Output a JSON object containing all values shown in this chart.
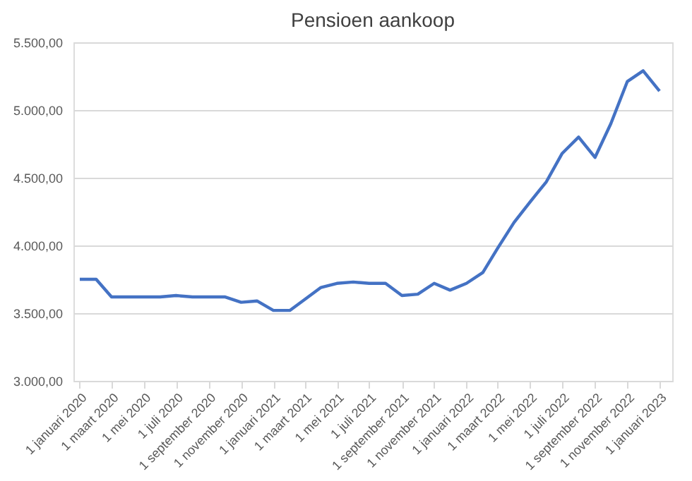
{
  "chart_data": {
    "type": "line",
    "title": "Pensioen aankoop",
    "x": [
      "2020-01-01",
      "2020-02-01",
      "2020-03-01",
      "2020-04-01",
      "2020-05-01",
      "2020-06-01",
      "2020-07-01",
      "2020-08-01",
      "2020-09-01",
      "2020-10-01",
      "2020-11-01",
      "2020-12-01",
      "2021-01-01",
      "2021-02-01",
      "2021-03-01",
      "2021-04-01",
      "2021-05-01",
      "2021-06-01",
      "2021-07-01",
      "2021-08-01",
      "2021-09-01",
      "2021-10-01",
      "2021-11-01",
      "2021-12-01",
      "2022-01-01",
      "2022-02-01",
      "2022-03-01",
      "2022-04-01",
      "2022-05-01",
      "2022-06-01",
      "2022-07-01",
      "2022-08-01",
      "2022-09-01",
      "2022-10-01",
      "2022-11-01",
      "2022-12-01",
      "2023-01-01"
    ],
    "series": [
      {
        "color": "#4472c4",
        "values": [
          3750,
          3750,
          3620,
          3620,
          3620,
          3620,
          3630,
          3620,
          3620,
          3620,
          3580,
          3590,
          3520,
          3520,
          3600,
          3690,
          3720,
          3730,
          3720,
          3720,
          3630,
          3640,
          3720,
          3670,
          3720,
          3800,
          3980,
          4170,
          4320,
          4470,
          4680,
          4800,
          4650,
          4900,
          5210,
          5290,
          5140
        ]
      }
    ],
    "xlim": [
      "2019-12-20",
      "2023-01-25"
    ],
    "xticks": [
      {
        "value": "2020-01-01",
        "label": "1 januari 2020"
      },
      {
        "value": "2020-03-01",
        "label": "1 maart 2020"
      },
      {
        "value": "2020-05-01",
        "label": "1 mei 2020"
      },
      {
        "value": "2020-07-01",
        "label": "1 juli 2020"
      },
      {
        "value": "2020-09-01",
        "label": "1 september 2020"
      },
      {
        "value": "2020-11-01",
        "label": "1 november 2020"
      },
      {
        "value": "2021-01-01",
        "label": "1 januari 2021"
      },
      {
        "value": "2021-03-01",
        "label": "1 maart 2021"
      },
      {
        "value": "2021-05-01",
        "label": "1 mei 2021"
      },
      {
        "value": "2021-07-01",
        "label": "1 juli 2021"
      },
      {
        "value": "2021-09-01",
        "label": "1 september 2021"
      },
      {
        "value": "2021-11-01",
        "label": "1 november 2021"
      },
      {
        "value": "2022-01-01",
        "label": "1 januari 2022"
      },
      {
        "value": "2022-03-01",
        "label": "1 maart 2022"
      },
      {
        "value": "2022-05-01",
        "label": "1 mei 2022"
      },
      {
        "value": "2022-07-01",
        "label": "1 juli 2022"
      },
      {
        "value": "2022-09-01",
        "label": "1 september 2022"
      },
      {
        "value": "2022-11-01",
        "label": "1 november 2022"
      },
      {
        "value": "2023-01-01",
        "label": "1 januari 2023"
      }
    ],
    "ylim": [
      3000,
      5500
    ],
    "yticks": [
      {
        "value": 3000,
        "label": "3.000,00"
      },
      {
        "value": 3500,
        "label": "3.500,00"
      },
      {
        "value": 4000,
        "label": "4.000,00"
      },
      {
        "value": 4500,
        "label": "4.500,00"
      },
      {
        "value": 5000,
        "label": "5.000,00"
      },
      {
        "value": 5500,
        "label": "5.500,00"
      }
    ],
    "grid": "y",
    "legend": false,
    "marker": "none",
    "line_style": "solid"
  }
}
